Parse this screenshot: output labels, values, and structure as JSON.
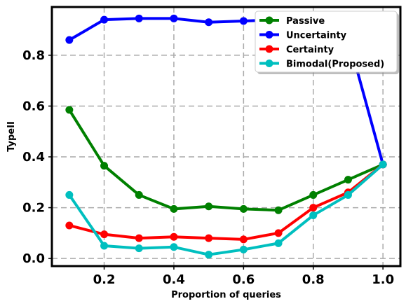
{
  "chart_data": {
    "type": "line",
    "title": "",
    "xlabel": "Proportion of queries",
    "ylabel": "TypeII",
    "xlim": [
      0.05,
      1.05
    ],
    "ylim": [
      -0.03,
      0.99
    ],
    "xticks": [
      0.2,
      0.4,
      0.6,
      0.8,
      1.0
    ],
    "xtick_labels": [
      "0.2",
      "0.4",
      "0.6",
      "0.8",
      "1.0"
    ],
    "yticks": [
      0.0,
      0.2,
      0.4,
      0.6,
      0.8
    ],
    "ytick_labels": [
      "0.0",
      "0.2",
      "0.4",
      "0.6",
      "0.8"
    ],
    "grid": true,
    "legend_position": "top-right",
    "x": [
      0.1,
      0.2,
      0.3,
      0.4,
      0.5,
      0.6,
      0.7,
      0.8,
      0.9,
      1.0
    ],
    "series": [
      {
        "name": "Passive",
        "color": "#008000",
        "values": [
          0.585,
          0.365,
          0.25,
          0.195,
          0.205,
          0.195,
          0.19,
          0.25,
          0.31,
          0.37
        ]
      },
      {
        "name": "Uncertainty",
        "color": "#0000ff",
        "values": [
          0.86,
          0.94,
          0.945,
          0.945,
          0.93,
          0.935,
          0.94,
          0.935,
          0.87,
          0.37
        ]
      },
      {
        "name": "Certainty",
        "color": "#ff0000",
        "values": [
          0.13,
          0.095,
          0.08,
          0.085,
          0.08,
          0.075,
          0.1,
          0.2,
          0.26,
          0.37
        ]
      },
      {
        "name": "Bimodal(Proposed)",
        "color": "#00bfbf",
        "values": [
          0.25,
          0.05,
          0.04,
          0.045,
          0.015,
          0.035,
          0.06,
          0.17,
          0.25,
          0.37
        ]
      }
    ]
  }
}
